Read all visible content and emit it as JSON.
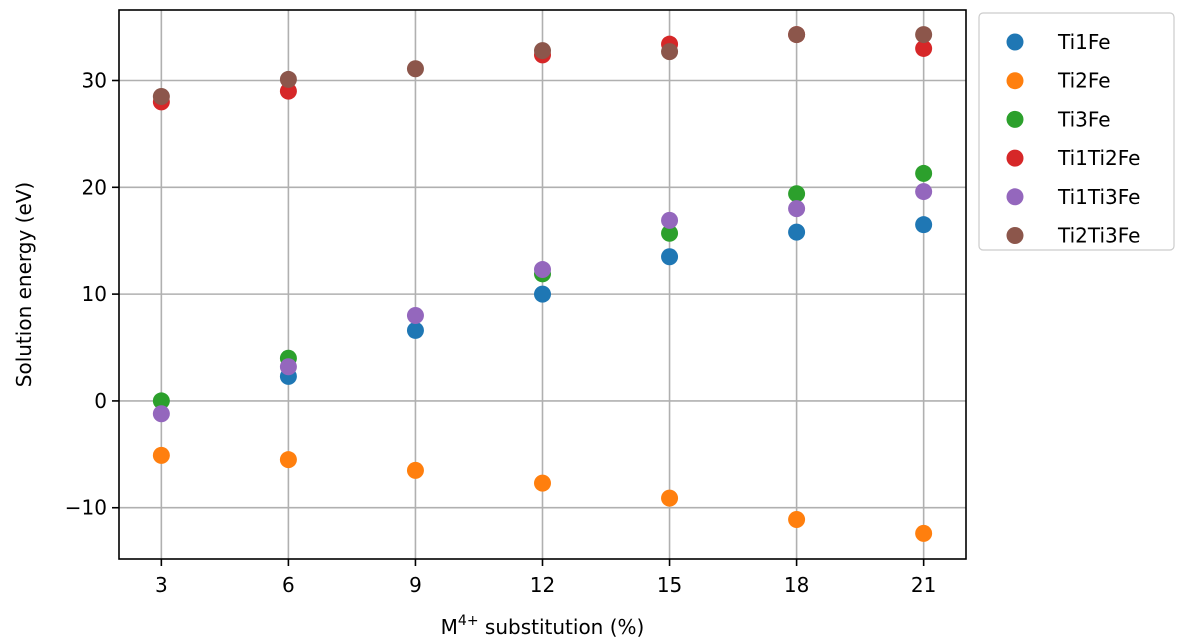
{
  "chart_data": {
    "type": "scatter",
    "xlabel": {
      "base": "M",
      "superscript": "4+",
      "rest": " substitution (%)"
    },
    "ylabel": "Solution energy (eV)",
    "x": [
      3,
      6,
      9,
      12,
      15,
      18,
      21
    ],
    "xticks": [
      3,
      6,
      9,
      12,
      15,
      18,
      21
    ],
    "xtick_labels": [
      "3",
      "6",
      "9",
      "12",
      "15",
      "18",
      "21"
    ],
    "yticks": [
      -10,
      0,
      10,
      20,
      30
    ],
    "ytick_labels": [
      "−10",
      "0",
      "10",
      "20",
      "30"
    ],
    "xlim": [
      2,
      22
    ],
    "ylim": [
      -14.8,
      36.6
    ],
    "grid": true,
    "legend_position": "outside-right-top",
    "series": [
      {
        "name": "Ti1Fe",
        "color": "#1f77b4",
        "values": [
          null,
          2.3,
          6.6,
          10.0,
          13.5,
          15.8,
          16.5
        ]
      },
      {
        "name": "Ti2Fe",
        "color": "#ff7f0e",
        "values": [
          -5.1,
          -5.5,
          -6.5,
          -7.7,
          -9.1,
          -11.1,
          -12.4
        ]
      },
      {
        "name": "Ti3Fe",
        "color": "#2ca02c",
        "values": [
          0.0,
          4.0,
          null,
          11.9,
          15.7,
          19.4,
          21.3
        ]
      },
      {
        "name": "Ti1Ti2Fe",
        "color": "#d62728",
        "values": [
          28.0,
          29.0,
          null,
          32.4,
          33.4,
          34.3,
          33.0
        ]
      },
      {
        "name": "Ti1Ti3Fe",
        "color": "#9467bd",
        "values": [
          -1.2,
          3.2,
          8.0,
          12.3,
          16.9,
          18.0,
          19.6
        ]
      },
      {
        "name": "Ti2Ti3Fe",
        "color": "#8c564b",
        "values": [
          28.5,
          30.1,
          31.1,
          32.8,
          32.7,
          34.3,
          34.3
        ]
      }
    ]
  }
}
